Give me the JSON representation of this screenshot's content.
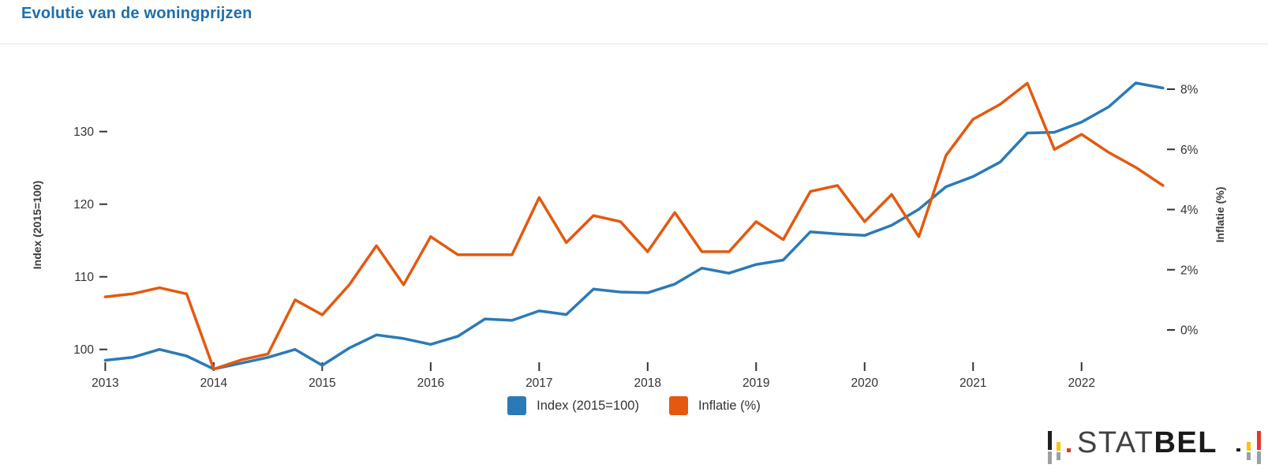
{
  "page": {
    "title": "Evolutie van de woningprijzen"
  },
  "chart_data": {
    "type": "line",
    "title": "Evolutie van de woningprijzen",
    "frequency": "quarterly",
    "x_start": "2013-Q1",
    "x_end": "2022-Q4",
    "x_tick_labels": [
      "2013",
      "2014",
      "2015",
      "2016",
      "2017",
      "2018",
      "2019",
      "2020",
      "2021",
      "2022"
    ],
    "grid": false,
    "legend_position": "bottom-center",
    "left_axis": {
      "label": "Index (2015=100)",
      "ticks": [
        100,
        110,
        120,
        130
      ],
      "min": 96.3,
      "max": 137.8
    },
    "right_axis": {
      "label": "Inflatie (%)",
      "ticks": [
        0,
        2,
        4,
        6,
        8
      ],
      "tick_suffix": "%",
      "min": -1.6,
      "max": 9.0
    },
    "series": [
      {
        "name": "Index (2015=100)",
        "axis": "left",
        "color": "#2b7ab8",
        "values": [
          98.5,
          98.9,
          100.0,
          99.1,
          97.3,
          98.1,
          98.9,
          100.0,
          97.8,
          100.2,
          102.0,
          101.5,
          100.7,
          101.8,
          104.2,
          104.0,
          105.3,
          104.8,
          108.3,
          107.9,
          107.8,
          109.0,
          111.2,
          110.5,
          111.7,
          112.3,
          116.2,
          115.9,
          115.7,
          117.1,
          119.3,
          122.4,
          123.8,
          125.8,
          129.8,
          129.9,
          131.3,
          133.4,
          136.7,
          136.0
        ]
      },
      {
        "name": "Inflatie (%)",
        "axis": "right",
        "color": "#e4590e",
        "values": [
          1.1,
          1.2,
          1.4,
          1.2,
          -1.3,
          -1.0,
          -0.8,
          1.0,
          0.5,
          1.5,
          2.8,
          1.5,
          3.1,
          2.5,
          2.5,
          2.5,
          4.4,
          2.9,
          3.8,
          3.6,
          2.6,
          3.9,
          2.6,
          2.6,
          3.6,
          3.0,
          4.6,
          4.8,
          3.6,
          4.5,
          3.1,
          5.8,
          7.0,
          7.5,
          8.2,
          6.0,
          6.5,
          5.9,
          5.4,
          4.8
        ]
      }
    ]
  },
  "logo": {
    "text_regular": "STAT",
    "text_bold": "BEL",
    "colors": {
      "black": "#231f20",
      "yellow": "#fdc30b",
      "red": "#e5382e",
      "gray": "#9d9fa2"
    }
  }
}
